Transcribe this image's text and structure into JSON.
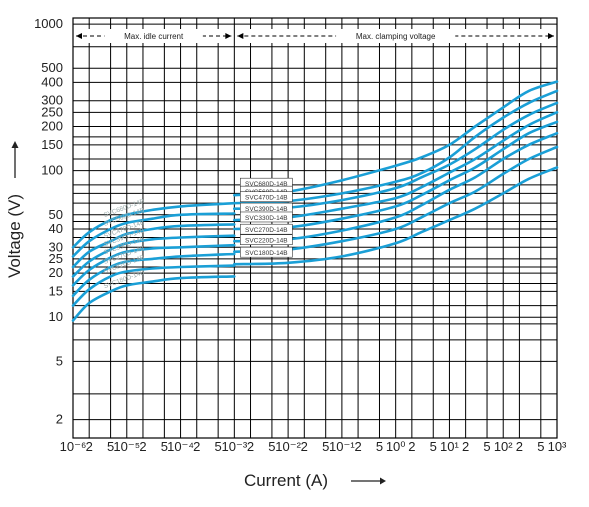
{
  "chart_data": {
    "type": "line",
    "title": "",
    "xlabel": "Current (A)",
    "ylabel": "Voltage (V)",
    "xscale": "log",
    "yscale": "log",
    "xlim": [
      1e-06,
      1000
    ],
    "ylim": [
      1.5,
      1100
    ],
    "grid": true,
    "line_color": "#1a9fd6",
    "x_tick_labels": [
      "10⁻⁶",
      "2",
      "5",
      "10⁻⁵",
      "2",
      "5",
      "10⁻⁴",
      "2",
      "5",
      "10⁻³",
      "2",
      "5",
      "10⁻²",
      "2",
      "5",
      "10⁻¹",
      "2",
      "5",
      "10⁰",
      "2",
      "5",
      "10¹",
      "2",
      "5",
      "10²",
      "2",
      "5",
      "10³"
    ],
    "y_tick_labels": [
      {
        "value": 1000,
        "label": "1000"
      },
      {
        "value": 500,
        "label": "500"
      },
      {
        "value": 400,
        "label": "400"
      },
      {
        "value": 300,
        "label": "300"
      },
      {
        "value": 250,
        "label": "250"
      },
      {
        "value": 200,
        "label": "200"
      },
      {
        "value": 150,
        "label": "150"
      },
      {
        "value": 100,
        "label": "100"
      },
      {
        "value": 50,
        "label": "50"
      },
      {
        "value": 40,
        "label": "40"
      },
      {
        "value": 30,
        "label": "30"
      },
      {
        "value": 25,
        "label": "25"
      },
      {
        "value": 20,
        "label": "20"
      },
      {
        "value": 15,
        "label": "15"
      },
      {
        "value": 10,
        "label": "10"
      },
      {
        "value": 5,
        "label": "5"
      },
      {
        "value": 2,
        "label": "2"
      }
    ],
    "regions": [
      {
        "label": "Max. idle current",
        "x_from": 1e-06,
        "x_to": 0.001
      },
      {
        "label": "Max. clamping voltage",
        "x_from": 0.001,
        "x_to": 1000
      }
    ],
    "series": [
      {
        "name": "SVC680D-14B",
        "idle": [
          [
            1e-06,
            30
          ],
          [
            2e-06,
            38
          ],
          [
            5e-06,
            46
          ],
          [
            1e-05,
            50
          ],
          [
            3e-05,
            54
          ],
          [
            0.0001,
            57
          ],
          [
            0.001,
            60
          ]
        ],
        "clamp": [
          [
            0.001,
            68
          ],
          [
            0.01,
            72
          ],
          [
            0.1,
            86
          ],
          [
            1,
            108
          ],
          [
            3,
            123
          ],
          [
            10,
            150
          ],
          [
            30,
            200
          ],
          [
            100,
            270
          ],
          [
            300,
            350
          ],
          [
            1000,
            405
          ]
        ]
      },
      {
        "name": "SVC560D-14B",
        "idle": [
          [
            1e-06,
            26
          ],
          [
            2e-06,
            33
          ],
          [
            5e-06,
            40
          ],
          [
            1e-05,
            44
          ],
          [
            3e-05,
            47
          ],
          [
            0.0001,
            50
          ],
          [
            0.001,
            51
          ]
        ],
        "clamp": [
          [
            0.001,
            60
          ],
          [
            0.01,
            62
          ],
          [
            0.1,
            70
          ],
          [
            1,
            84
          ],
          [
            3,
            96
          ],
          [
            10,
            123
          ],
          [
            30,
            170
          ],
          [
            100,
            230
          ],
          [
            300,
            290
          ],
          [
            1000,
            350
          ]
        ]
      },
      {
        "name": "SVC470D-14B",
        "idle": [
          [
            1e-06,
            22
          ],
          [
            2e-06,
            28
          ],
          [
            5e-06,
            33
          ],
          [
            1e-05,
            37
          ],
          [
            3e-05,
            40
          ],
          [
            0.0001,
            42
          ],
          [
            0.001,
            43
          ]
        ],
        "clamp": [
          [
            0.001,
            55
          ],
          [
            0.01,
            56
          ],
          [
            0.1,
            63
          ],
          [
            1,
            76
          ],
          [
            3,
            90
          ],
          [
            10,
            110
          ],
          [
            30,
            140
          ],
          [
            100,
            190
          ],
          [
            300,
            240
          ],
          [
            1000,
            290
          ]
        ]
      },
      {
        "name": "SVC390D-14B",
        "idle": [
          [
            1e-06,
            19
          ],
          [
            2e-06,
            24
          ],
          [
            5e-06,
            29
          ],
          [
            1e-05,
            32
          ],
          [
            3e-05,
            34
          ],
          [
            0.0001,
            35
          ],
          [
            0.001,
            36
          ]
        ],
        "clamp": [
          [
            0.001,
            46
          ],
          [
            0.01,
            48
          ],
          [
            0.1,
            55
          ],
          [
            1,
            65
          ],
          [
            3,
            77
          ],
          [
            10,
            97
          ],
          [
            30,
            120
          ],
          [
            100,
            160
          ],
          [
            300,
            205
          ],
          [
            1000,
            250
          ]
        ]
      },
      {
        "name": "SVC330D-14B",
        "idle": [
          [
            1e-06,
            16.5
          ],
          [
            2e-06,
            21
          ],
          [
            5e-06,
            25.5
          ],
          [
            1e-05,
            28
          ],
          [
            3e-05,
            29.5
          ],
          [
            0.0001,
            30
          ],
          [
            0.001,
            31
          ]
        ],
        "clamp": [
          [
            0.001,
            40
          ],
          [
            0.01,
            41
          ],
          [
            0.1,
            47
          ],
          [
            1,
            57
          ],
          [
            3,
            68
          ],
          [
            10,
            86
          ],
          [
            30,
            105
          ],
          [
            100,
            140
          ],
          [
            300,
            180
          ],
          [
            1000,
            215
          ]
        ]
      },
      {
        "name": "SVC270D-14B",
        "idle": [
          [
            1e-06,
            14
          ],
          [
            2e-06,
            18
          ],
          [
            5e-06,
            22
          ],
          [
            1e-05,
            24
          ],
          [
            3e-05,
            25
          ],
          [
            0.0001,
            26
          ],
          [
            0.001,
            27
          ]
        ],
        "clamp": [
          [
            0.001,
            33
          ],
          [
            0.01,
            34
          ],
          [
            0.1,
            39
          ],
          [
            1,
            48
          ],
          [
            3,
            58
          ],
          [
            10,
            74
          ],
          [
            30,
            90
          ],
          [
            100,
            120
          ],
          [
            300,
            150
          ],
          [
            1000,
            180
          ]
        ]
      },
      {
        "name": "SVC220D-14B",
        "idle": [
          [
            1e-06,
            12
          ],
          [
            2e-06,
            15.5
          ],
          [
            5e-06,
            19
          ],
          [
            1e-05,
            20.5
          ],
          [
            3e-05,
            21.5
          ],
          [
            0.0001,
            22
          ],
          [
            0.001,
            22.5
          ]
        ],
        "clamp": [
          [
            0.001,
            28
          ],
          [
            0.01,
            29
          ],
          [
            0.1,
            33
          ],
          [
            1,
            40
          ],
          [
            3,
            48
          ],
          [
            10,
            60
          ],
          [
            30,
            72
          ],
          [
            100,
            95
          ],
          [
            300,
            120
          ],
          [
            1000,
            145
          ]
        ]
      },
      {
        "name": "SVC180D-14B",
        "idle": [
          [
            1e-06,
            9.5
          ],
          [
            2e-06,
            12.5
          ],
          [
            5e-06,
            15
          ],
          [
            1e-05,
            16.5
          ],
          [
            3e-05,
            17.5
          ],
          [
            0.0001,
            18.5
          ],
          [
            0.001,
            19
          ]
        ],
        "clamp": [
          [
            0.001,
            23
          ],
          [
            0.01,
            23.5
          ],
          [
            0.1,
            26
          ],
          [
            1,
            32
          ],
          [
            3,
            38
          ],
          [
            10,
            46
          ],
          [
            30,
            55
          ],
          [
            100,
            70
          ],
          [
            300,
            88
          ],
          [
            1000,
            105
          ]
        ]
      }
    ]
  }
}
